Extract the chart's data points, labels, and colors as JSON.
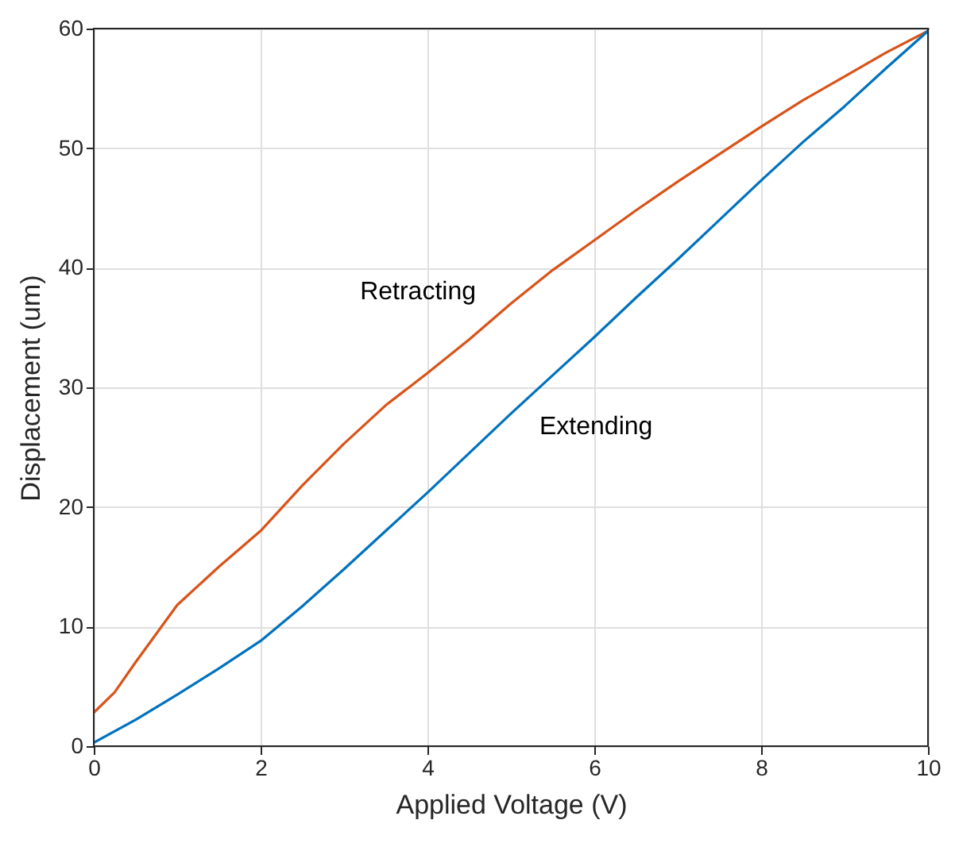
{
  "chart_data": {
    "type": "line",
    "xlabel": "Applied Voltage (V)",
    "ylabel": "Displacement (um)",
    "xlim": [
      0,
      10
    ],
    "ylim": [
      0,
      60
    ],
    "xticks": [
      0,
      2,
      4,
      6,
      8,
      10
    ],
    "yticks": [
      0,
      10,
      20,
      30,
      40,
      50,
      60
    ],
    "grid": true,
    "marker": "none",
    "line_style": "solid",
    "series": [
      {
        "name": "Retracting",
        "color": "#d95319",
        "x": [
          0,
          0.25,
          0.5,
          1,
          1.5,
          2,
          2.5,
          3,
          3.5,
          4,
          4.5,
          5,
          5.5,
          6,
          6.5,
          7,
          7.5,
          8,
          8.5,
          9,
          9.5,
          10
        ],
        "values": [
          2.8,
          4.5,
          7,
          11.8,
          15,
          18,
          21.8,
          25.3,
          28.5,
          31.2,
          34,
          37,
          39.8,
          42.3,
          44.8,
          47.2,
          49.5,
          51.8,
          54,
          56,
          58,
          59.8
        ]
      },
      {
        "name": "Extending",
        "color": "#0072bd",
        "x": [
          0,
          0.5,
          1,
          1.5,
          2,
          2.5,
          3,
          3.5,
          4,
          4.5,
          5,
          5.5,
          6,
          6.5,
          7,
          7.5,
          8,
          8.5,
          9,
          9.5,
          10
        ],
        "values": [
          0.3,
          2.2,
          4.3,
          6.5,
          8.8,
          11.7,
          14.8,
          18,
          21.2,
          24.5,
          27.8,
          31,
          34.2,
          37.5,
          40.7,
          44,
          47.3,
          50.5,
          53.5,
          56.7,
          59.8
        ]
      }
    ]
  }
}
